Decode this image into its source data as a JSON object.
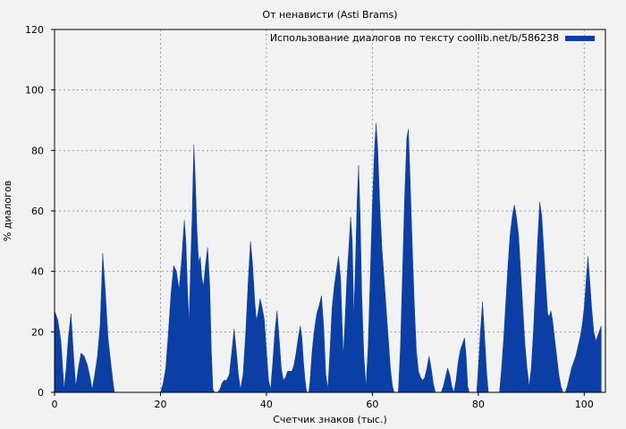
{
  "chart_data": {
    "type": "area",
    "title": "От ненависти (Asti Brams)",
    "xlabel": "Счетчик знаков (тыс.)",
    "ylabel": "% диалогов",
    "xlim": [
      0,
      104
    ],
    "ylim": [
      0,
      120
    ],
    "x_ticks": [
      0,
      20,
      40,
      60,
      80,
      100
    ],
    "y_ticks": [
      0,
      20,
      40,
      60,
      80,
      100,
      120
    ],
    "x_tick_labels": [
      "0",
      "20",
      "40",
      "60",
      "80",
      "100"
    ],
    "y_tick_labels": [
      "0",
      "20",
      "40",
      "60",
      "80",
      "100",
      "120"
    ],
    "grid": true,
    "legend_position": "top-right",
    "colors": {
      "series": "#0b3fa6",
      "background": "#f2f2f2",
      "grid": "#a0a0a0"
    },
    "series": [
      {
        "name": "Использование диалогов по тексту coollib.net/b/586238",
        "points": [
          [
            0,
            27
          ],
          [
            0.6,
            24
          ],
          [
            1.2,
            17
          ],
          [
            1.8,
            1
          ],
          [
            2.2,
            8
          ],
          [
            2.6,
            18
          ],
          [
            3.1,
            26
          ],
          [
            3.6,
            12
          ],
          [
            4.0,
            2
          ],
          [
            4.5,
            8
          ],
          [
            5.0,
            13
          ],
          [
            5.6,
            12
          ],
          [
            6.2,
            9
          ],
          [
            6.7,
            5
          ],
          [
            7.1,
            1
          ],
          [
            7.6,
            6
          ],
          [
            8.1,
            12
          ],
          [
            8.6,
            22
          ],
          [
            9.1,
            46
          ],
          [
            9.6,
            33
          ],
          [
            10.1,
            18
          ],
          [
            10.6,
            10
          ],
          [
            11.0,
            4
          ],
          [
            11.3,
            0
          ],
          [
            20.0,
            0
          ],
          [
            20.5,
            3
          ],
          [
            21.0,
            8
          ],
          [
            21.5,
            20
          ],
          [
            22.0,
            33
          ],
          [
            22.5,
            42
          ],
          [
            23.0,
            40
          ],
          [
            23.5,
            34
          ],
          [
            24.0,
            44
          ],
          [
            24.5,
            57
          ],
          [
            24.8,
            50
          ],
          [
            25.1,
            34
          ],
          [
            25.4,
            23
          ],
          [
            25.7,
            43
          ],
          [
            26.0,
            60
          ],
          [
            26.3,
            82
          ],
          [
            26.6,
            69
          ],
          [
            26.9,
            53
          ],
          [
            27.2,
            43
          ],
          [
            27.5,
            45
          ],
          [
            27.8,
            38
          ],
          [
            28.1,
            35
          ],
          [
            28.5,
            42
          ],
          [
            28.9,
            48
          ],
          [
            29.3,
            35
          ],
          [
            29.6,
            14
          ],
          [
            29.9,
            1
          ],
          [
            30.2,
            0
          ],
          [
            30.8,
            0
          ],
          [
            31.2,
            1
          ],
          [
            31.6,
            3
          ],
          [
            32.0,
            4
          ],
          [
            32.5,
            4
          ],
          [
            33.0,
            6
          ],
          [
            33.5,
            14
          ],
          [
            33.9,
            21
          ],
          [
            34.3,
            14
          ],
          [
            34.7,
            6
          ],
          [
            35.1,
            1
          ],
          [
            35.6,
            6
          ],
          [
            36.1,
            20
          ],
          [
            36.6,
            38
          ],
          [
            37.0,
            50
          ],
          [
            37.4,
            42
          ],
          [
            37.8,
            30
          ],
          [
            38.1,
            24
          ],
          [
            38.4,
            26
          ],
          [
            38.8,
            31
          ],
          [
            39.2,
            28
          ],
          [
            39.6,
            24
          ],
          [
            40.0,
            14
          ],
          [
            40.4,
            4
          ],
          [
            40.8,
            1
          ],
          [
            41.2,
            10
          ],
          [
            41.6,
            20
          ],
          [
            42.0,
            27
          ],
          [
            42.4,
            18
          ],
          [
            42.8,
            8
          ],
          [
            43.2,
            4
          ],
          [
            43.6,
            5
          ],
          [
            44.0,
            7
          ],
          [
            44.4,
            7
          ],
          [
            44.8,
            7
          ],
          [
            45.2,
            9
          ],
          [
            45.6,
            13
          ],
          [
            46.0,
            18
          ],
          [
            46.4,
            22
          ],
          [
            46.7,
            18
          ],
          [
            47.0,
            10
          ],
          [
            47.3,
            4
          ],
          [
            47.6,
            0
          ],
          [
            48.0,
            0
          ],
          [
            48.2,
            3
          ],
          [
            48.6,
            13
          ],
          [
            49.0,
            20
          ],
          [
            49.5,
            26
          ],
          [
            50.0,
            29
          ],
          [
            50.4,
            32
          ],
          [
            50.8,
            22
          ],
          [
            51.2,
            6
          ],
          [
            51.6,
            1
          ],
          [
            52.0,
            14
          ],
          [
            52.4,
            28
          ],
          [
            52.8,
            35
          ],
          [
            53.2,
            40
          ],
          [
            53.6,
            45
          ],
          [
            54.0,
            38
          ],
          [
            54.3,
            22
          ],
          [
            54.5,
            12
          ],
          [
            54.8,
            22
          ],
          [
            55.2,
            38
          ],
          [
            55.6,
            49
          ],
          [
            55.9,
            58
          ],
          [
            56.2,
            50
          ],
          [
            56.5,
            25
          ],
          [
            56.8,
            42
          ],
          [
            57.1,
            62
          ],
          [
            57.4,
            75
          ],
          [
            57.7,
            58
          ],
          [
            58.0,
            32
          ],
          [
            58.4,
            12
          ],
          [
            58.8,
            2
          ],
          [
            59.2,
            15
          ],
          [
            59.6,
            38
          ],
          [
            60.0,
            62
          ],
          [
            60.4,
            80
          ],
          [
            60.7,
            89
          ],
          [
            61.0,
            81
          ],
          [
            61.4,
            62
          ],
          [
            61.8,
            48
          ],
          [
            62.2,
            38
          ],
          [
            62.6,
            28
          ],
          [
            63.0,
            18
          ],
          [
            63.4,
            8
          ],
          [
            63.8,
            2
          ],
          [
            64.1,
            0
          ],
          [
            64.9,
            0
          ],
          [
            65.3,
            15
          ],
          [
            65.7,
            40
          ],
          [
            66.1,
            65
          ],
          [
            66.5,
            84
          ],
          [
            66.8,
            87
          ],
          [
            67.1,
            72
          ],
          [
            67.5,
            50
          ],
          [
            67.9,
            30
          ],
          [
            68.3,
            14
          ],
          [
            68.7,
            7
          ],
          [
            69.1,
            5
          ],
          [
            69.5,
            4
          ],
          [
            69.9,
            5
          ],
          [
            70.3,
            8
          ],
          [
            70.7,
            12
          ],
          [
            71.1,
            8
          ],
          [
            71.5,
            3
          ],
          [
            71.9,
            0
          ],
          [
            73.0,
            0
          ],
          [
            73.4,
            2
          ],
          [
            73.8,
            5
          ],
          [
            74.2,
            8
          ],
          [
            74.6,
            6
          ],
          [
            75.0,
            2
          ],
          [
            75.4,
            0
          ],
          [
            75.8,
            4
          ],
          [
            76.2,
            10
          ],
          [
            76.6,
            14
          ],
          [
            77.0,
            16
          ],
          [
            77.4,
            18
          ],
          [
            77.7,
            12
          ],
          [
            78.0,
            2
          ],
          [
            78.3,
            0
          ],
          [
            79.7,
            0
          ],
          [
            80.0,
            8
          ],
          [
            80.4,
            20
          ],
          [
            80.8,
            30
          ],
          [
            81.2,
            18
          ],
          [
            81.6,
            6
          ],
          [
            81.9,
            0
          ],
          [
            84.0,
            0
          ],
          [
            84.4,
            8
          ],
          [
            84.8,
            18
          ],
          [
            85.2,
            30
          ],
          [
            85.6,
            42
          ],
          [
            86.0,
            52
          ],
          [
            86.4,
            58
          ],
          [
            86.8,
            62
          ],
          [
            87.2,
            58
          ],
          [
            87.6,
            52
          ],
          [
            88.0,
            40
          ],
          [
            88.4,
            28
          ],
          [
            88.8,
            16
          ],
          [
            89.2,
            8
          ],
          [
            89.6,
            2
          ],
          [
            90.0,
            8
          ],
          [
            90.4,
            20
          ],
          [
            90.8,
            35
          ],
          [
            91.2,
            50
          ],
          [
            91.6,
            63
          ],
          [
            92.0,
            58
          ],
          [
            92.4,
            46
          ],
          [
            92.8,
            34
          ],
          [
            93.1,
            26
          ],
          [
            93.4,
            25
          ],
          [
            93.7,
            27
          ],
          [
            94.0,
            24
          ],
          [
            94.4,
            18
          ],
          [
            94.8,
            12
          ],
          [
            95.2,
            6
          ],
          [
            95.6,
            2
          ],
          [
            96.0,
            0
          ],
          [
            96.4,
            0
          ],
          [
            96.8,
            2
          ],
          [
            97.2,
            5
          ],
          [
            97.6,
            8
          ],
          [
            98.0,
            10
          ],
          [
            98.4,
            12
          ],
          [
            98.8,
            15
          ],
          [
            99.2,
            18
          ],
          [
            99.6,
            22
          ],
          [
            100.0,
            28
          ],
          [
            100.4,
            38
          ],
          [
            100.7,
            45
          ],
          [
            101.0,
            38
          ],
          [
            101.4,
            28
          ],
          [
            101.8,
            20
          ],
          [
            102.2,
            17
          ],
          [
            102.6,
            19
          ],
          [
            103.0,
            21
          ],
          [
            103.2,
            22
          ]
        ]
      }
    ]
  }
}
